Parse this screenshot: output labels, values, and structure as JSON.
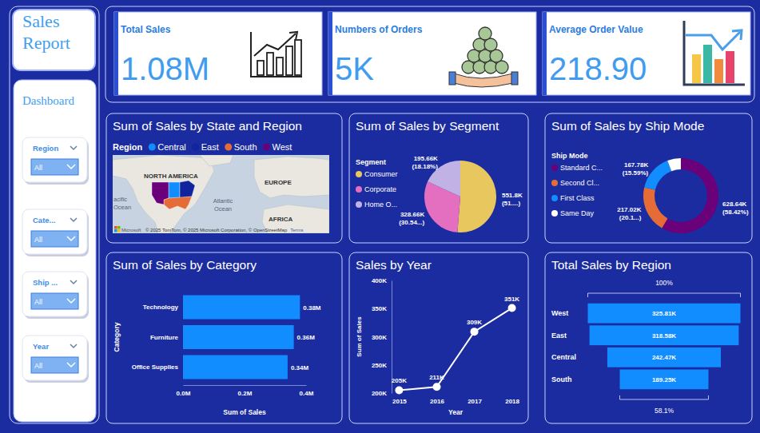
{
  "page": {
    "report_title": "Sales Report",
    "nav_label": "Dashboard"
  },
  "slicers": [
    {
      "label": "Region",
      "value": "All"
    },
    {
      "label": "Cate...",
      "value": "All"
    },
    {
      "label": "Ship ...",
      "value": "All"
    },
    {
      "label": "Year",
      "value": "All"
    }
  ],
  "kpis": [
    {
      "title": "Total Sales",
      "value": "1.08M"
    },
    {
      "title": "Numbers of Orders",
      "value": "5K"
    },
    {
      "title": "Average Order Value",
      "value": "218.90"
    }
  ],
  "chart_data": [
    {
      "type": "map",
      "title": "Sum of Sales by State and Region",
      "legend_title": "Region",
      "series": [
        {
          "name": "Central",
          "color": "#118dff"
        },
        {
          "name": "East",
          "color": "#12239e"
        },
        {
          "name": "South",
          "color": "#e66c37"
        },
        {
          "name": "West",
          "color": "#6b007b"
        }
      ],
      "labels": [
        "NORTH AMERICA",
        "EUROPE",
        "Atlantic Ocean",
        "acific Ocean",
        "AFRICA"
      ],
      "logo": "Microsoft",
      "attribution": "© 2025 TomTom, © 2025 Microsoft Corporation, © OpenStreetMap",
      "terms": "Terms"
    },
    {
      "type": "pie",
      "title": "Sum of Sales by Segment",
      "legend_title": "Segment",
      "categories": [
        "Consumer",
        "Corporate",
        "Home O..."
      ],
      "values": [
        551.8,
        328.66,
        195.66
      ],
      "value_labels": [
        "551.8K",
        "328.66K",
        "195.66K"
      ],
      "percent_labels": [
        "(51....)",
        "(30.54...)",
        "(18.18%)"
      ],
      "colors": [
        "#e8c85e",
        "#e46fc1",
        "#c1b2e6"
      ],
      "data_labels": true
    },
    {
      "type": "donut",
      "title": "Sum of Sales by Ship Mode",
      "legend_title": "Ship Mode",
      "categories": [
        "Standard C...",
        "Second Cl...",
        "First Class",
        "Same Day"
      ],
      "values": [
        628.64,
        217.02,
        167.78,
        62.68
      ],
      "value_labels": [
        "628.64K",
        "217.02K",
        "167.78K",
        null
      ],
      "percent_labels": [
        "(58.42%)",
        "(20.1...)",
        "(15.59%)",
        null
      ],
      "colors": [
        "#6b007b",
        "#e66c37",
        "#118dff",
        "#ffffff"
      ],
      "data_labels": true
    },
    {
      "type": "bar",
      "orientation": "horizontal",
      "title": "Sum of Sales by Category",
      "x_label": "Sum of Sales",
      "y_label": "Category",
      "categories": [
        "Technology",
        "Furniture",
        "Office Supplies"
      ],
      "values": [
        0.38,
        0.36,
        0.34
      ],
      "value_labels": [
        "0.38M",
        "0.36M",
        "0.34M"
      ],
      "color": "#118dff",
      "xlim": [
        0,
        0.4
      ],
      "xticks": [
        {
          "value": 0,
          "label": "0.0M"
        },
        {
          "value": 0.2,
          "label": "0.2M"
        },
        {
          "value": 0.4,
          "label": "0.4M"
        }
      ],
      "grid": false,
      "data_labels": true
    },
    {
      "type": "line",
      "title": "Sales by Year",
      "x_label": "Year",
      "y_label": "Sum of Sales",
      "categories": [
        "2015",
        "2016",
        "2017",
        "2018"
      ],
      "values": [
        205,
        211,
        309,
        351
      ],
      "value_labels": [
        "205K",
        "211K",
        "309K",
        "351K"
      ],
      "color": "#ffffff",
      "marker": "circle",
      "ylim": [
        200,
        400
      ],
      "yticks": [
        {
          "value": 200,
          "label": "200K"
        },
        {
          "value": 250,
          "label": "250K"
        },
        {
          "value": 300,
          "label": "300K"
        },
        {
          "value": 350,
          "label": "350K"
        },
        {
          "value": 400,
          "label": "400K"
        }
      ],
      "grid": false,
      "data_labels": true
    },
    {
      "type": "funnel",
      "title": "Total Sales by Region",
      "categories": [
        "West",
        "East",
        "Central",
        "South"
      ],
      "values": [
        325.81,
        318.58,
        242.47,
        189.25
      ],
      "value_labels": [
        "325.81K",
        "318.58K",
        "242.47K",
        "189.25K"
      ],
      "color": "#118dff",
      "data_labels": true,
      "top_label": "100%",
      "bottom_label": "58.1%"
    }
  ]
}
